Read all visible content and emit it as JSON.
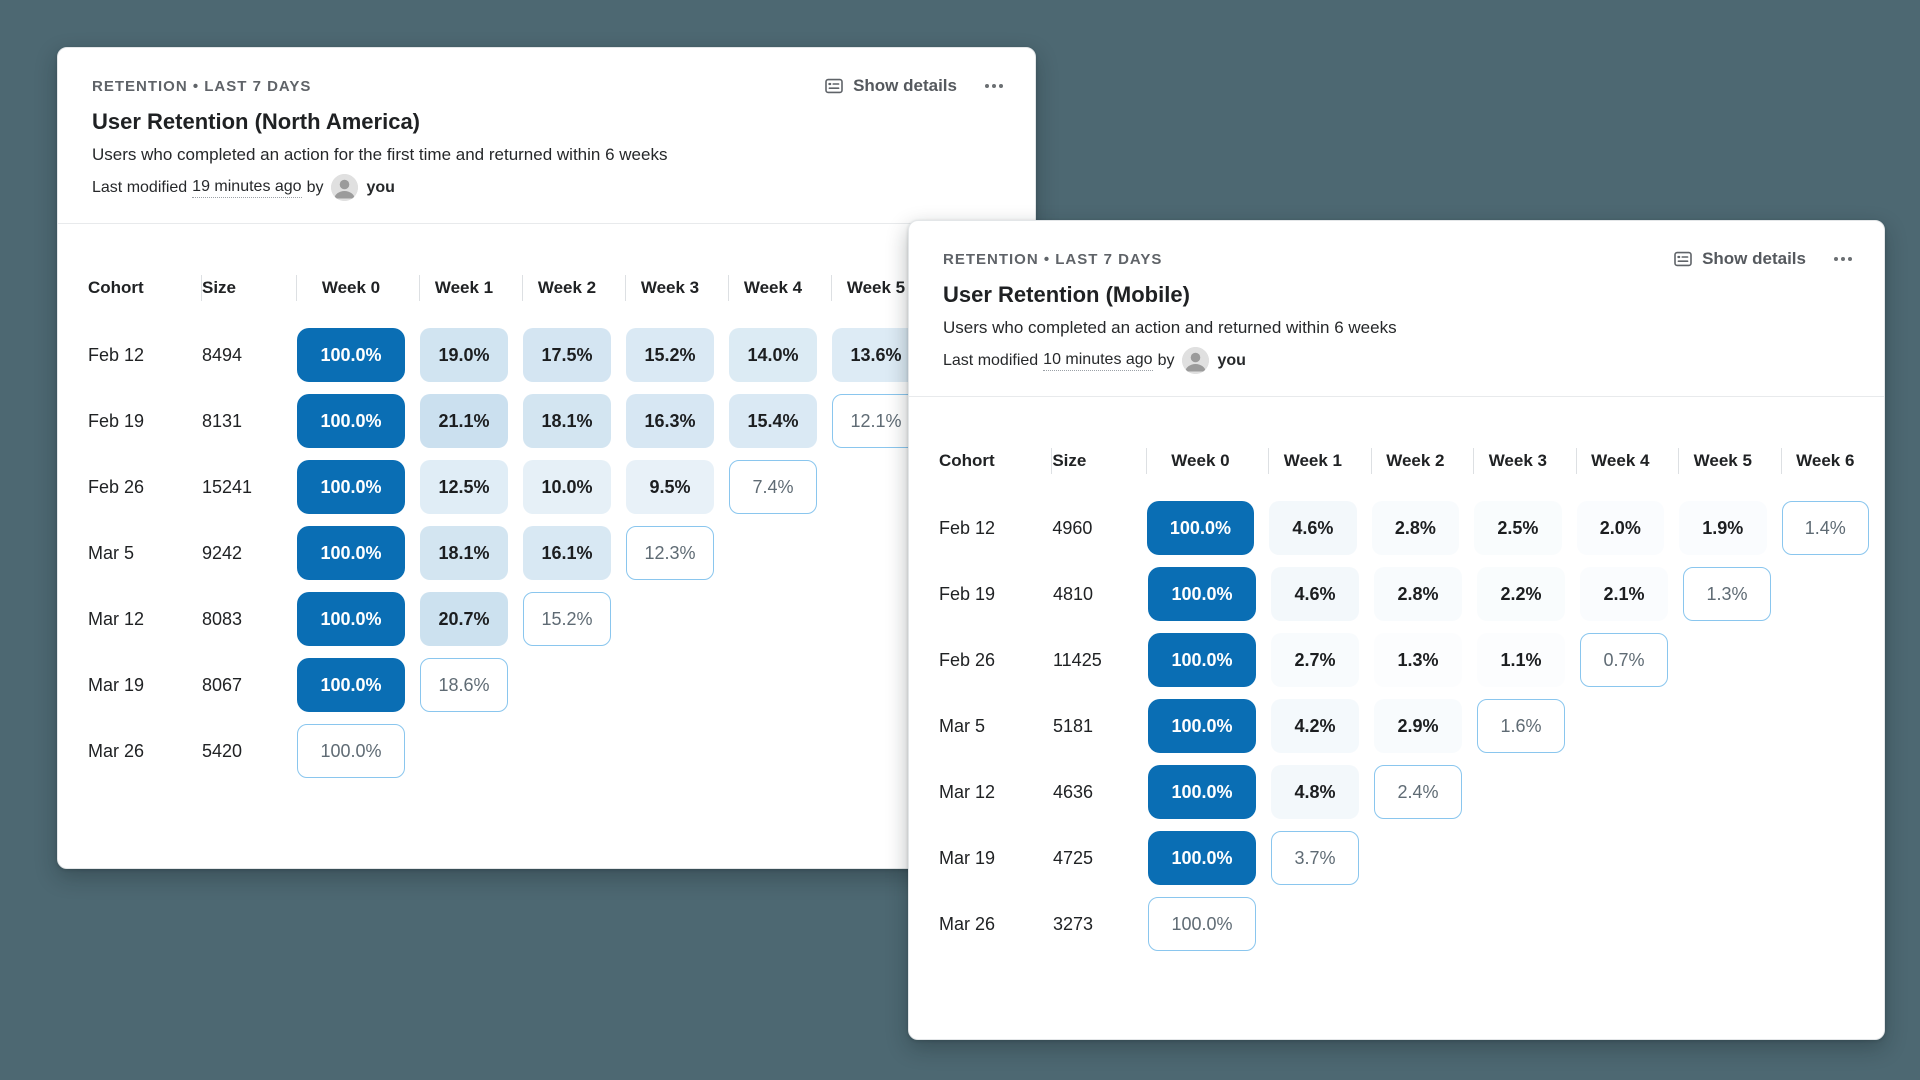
{
  "background_color": "#4d6872",
  "accent": {
    "solid_blue": "#0a6eb4",
    "outline_border": "#8ac6ee"
  },
  "icons": {
    "show_details": "details-card-icon",
    "more": "ellipsis-icon",
    "avatar": "user-photo"
  },
  "cards": [
    {
      "eyebrow": "RETENTION • LAST 7 DAYS",
      "title": "User Retention (North America)",
      "description": "Users who completed an action for the first time and returned within 6 weeks",
      "modified": {
        "prefix": "Last modified",
        "time": "19 minutes ago",
        "by_label": "by",
        "user": "you"
      },
      "actions": {
        "show_details": "Show details"
      },
      "table": {
        "columns": [
          "Cohort",
          "Size",
          "Week 0",
          "Week 1",
          "Week 2",
          "Week 3",
          "Week 4",
          "Week 5"
        ],
        "rows": [
          {
            "cohort": "Feb 12",
            "size": "8494",
            "cells": [
              {
                "label": "100.0%",
                "pct": 100,
                "kind": "solid"
              },
              {
                "label": "19.0%",
                "pct": 19.0,
                "kind": "filled"
              },
              {
                "label": "17.5%",
                "pct": 17.5,
                "kind": "filled"
              },
              {
                "label": "15.2%",
                "pct": 15.2,
                "kind": "filled"
              },
              {
                "label": "14.0%",
                "pct": 14.0,
                "kind": "filled"
              },
              {
                "label": "13.6%",
                "pct": 13.6,
                "kind": "filled"
              }
            ]
          },
          {
            "cohort": "Feb 19",
            "size": "8131",
            "cells": [
              {
                "label": "100.0%",
                "pct": 100,
                "kind": "solid"
              },
              {
                "label": "21.1%",
                "pct": 21.1,
                "kind": "filled"
              },
              {
                "label": "18.1%",
                "pct": 18.1,
                "kind": "filled"
              },
              {
                "label": "16.3%",
                "pct": 16.3,
                "kind": "filled"
              },
              {
                "label": "15.4%",
                "pct": 15.4,
                "kind": "filled"
              },
              {
                "label": "12.1%",
                "pct": 12.1,
                "kind": "outline"
              }
            ]
          },
          {
            "cohort": "Feb 26",
            "size": "15241",
            "cells": [
              {
                "label": "100.0%",
                "pct": 100,
                "kind": "solid"
              },
              {
                "label": "12.5%",
                "pct": 12.5,
                "kind": "filled"
              },
              {
                "label": "10.0%",
                "pct": 10.0,
                "kind": "filled"
              },
              {
                "label": "9.5%",
                "pct": 9.5,
                "kind": "filled"
              },
              {
                "label": "7.4%",
                "pct": 7.4,
                "kind": "outline"
              }
            ]
          },
          {
            "cohort": "Mar 5",
            "size": "9242",
            "cells": [
              {
                "label": "100.0%",
                "pct": 100,
                "kind": "solid"
              },
              {
                "label": "18.1%",
                "pct": 18.1,
                "kind": "filled"
              },
              {
                "label": "16.1%",
                "pct": 16.1,
                "kind": "filled"
              },
              {
                "label": "12.3%",
                "pct": 12.3,
                "kind": "outline"
              }
            ]
          },
          {
            "cohort": "Mar 12",
            "size": "8083",
            "cells": [
              {
                "label": "100.0%",
                "pct": 100,
                "kind": "solid"
              },
              {
                "label": "20.7%",
                "pct": 20.7,
                "kind": "filled"
              },
              {
                "label": "15.2%",
                "pct": 15.2,
                "kind": "outline"
              }
            ]
          },
          {
            "cohort": "Mar 19",
            "size": "8067",
            "cells": [
              {
                "label": "100.0%",
                "pct": 100,
                "kind": "solid"
              },
              {
                "label": "18.6%",
                "pct": 18.6,
                "kind": "outline"
              }
            ]
          },
          {
            "cohort": "Mar 26",
            "size": "5420",
            "cells": [
              {
                "label": "100.0%",
                "pct": 100,
                "kind": "outline"
              }
            ]
          }
        ]
      }
    },
    {
      "eyebrow": "RETENTION • LAST 7 DAYS",
      "title": "User Retention (Mobile)",
      "description": "Users who completed an action and returned within 6 weeks",
      "modified": {
        "prefix": "Last modified",
        "time": "10 minutes ago",
        "by_label": "by",
        "user": "you"
      },
      "actions": {
        "show_details": "Show details"
      },
      "table": {
        "columns": [
          "Cohort",
          "Size",
          "Week 0",
          "Week 1",
          "Week 2",
          "Week 3",
          "Week 4",
          "Week 5",
          "Week 6"
        ],
        "rows": [
          {
            "cohort": "Feb 12",
            "size": "4960",
            "cells": [
              {
                "label": "100.0%",
                "pct": 100,
                "kind": "solid"
              },
              {
                "label": "4.6%",
                "pct": 4.6,
                "kind": "filled"
              },
              {
                "label": "2.8%",
                "pct": 2.8,
                "kind": "filled"
              },
              {
                "label": "2.5%",
                "pct": 2.5,
                "kind": "filled"
              },
              {
                "label": "2.0%",
                "pct": 2.0,
                "kind": "filled"
              },
              {
                "label": "1.9%",
                "pct": 1.9,
                "kind": "filled"
              },
              {
                "label": "1.4%",
                "pct": 1.4,
                "kind": "outline"
              }
            ]
          },
          {
            "cohort": "Feb 19",
            "size": "4810",
            "cells": [
              {
                "label": "100.0%",
                "pct": 100,
                "kind": "solid"
              },
              {
                "label": "4.6%",
                "pct": 4.6,
                "kind": "filled"
              },
              {
                "label": "2.8%",
                "pct": 2.8,
                "kind": "filled"
              },
              {
                "label": "2.2%",
                "pct": 2.2,
                "kind": "filled"
              },
              {
                "label": "2.1%",
                "pct": 2.1,
                "kind": "filled"
              },
              {
                "label": "1.3%",
                "pct": 1.3,
                "kind": "outline"
              }
            ]
          },
          {
            "cohort": "Feb 26",
            "size": "11425",
            "cells": [
              {
                "label": "100.0%",
                "pct": 100,
                "kind": "solid"
              },
              {
                "label": "2.7%",
                "pct": 2.7,
                "kind": "filled"
              },
              {
                "label": "1.3%",
                "pct": 1.3,
                "kind": "filled"
              },
              {
                "label": "1.1%",
                "pct": 1.1,
                "kind": "filled"
              },
              {
                "label": "0.7%",
                "pct": 0.7,
                "kind": "outline"
              }
            ]
          },
          {
            "cohort": "Mar 5",
            "size": "5181",
            "cells": [
              {
                "label": "100.0%",
                "pct": 100,
                "kind": "solid"
              },
              {
                "label": "4.2%",
                "pct": 4.2,
                "kind": "filled"
              },
              {
                "label": "2.9%",
                "pct": 2.9,
                "kind": "filled"
              },
              {
                "label": "1.6%",
                "pct": 1.6,
                "kind": "outline"
              }
            ]
          },
          {
            "cohort": "Mar 12",
            "size": "4636",
            "cells": [
              {
                "label": "100.0%",
                "pct": 100,
                "kind": "solid"
              },
              {
                "label": "4.8%",
                "pct": 4.8,
                "kind": "filled"
              },
              {
                "label": "2.4%",
                "pct": 2.4,
                "kind": "outline"
              }
            ]
          },
          {
            "cohort": "Mar 19",
            "size": "4725",
            "cells": [
              {
                "label": "100.0%",
                "pct": 100,
                "kind": "solid"
              },
              {
                "label": "3.7%",
                "pct": 3.7,
                "kind": "outline"
              }
            ]
          },
          {
            "cohort": "Mar 26",
            "size": "3273",
            "cells": [
              {
                "label": "100.0%",
                "pct": 100,
                "kind": "outline"
              }
            ]
          }
        ]
      }
    }
  ]
}
